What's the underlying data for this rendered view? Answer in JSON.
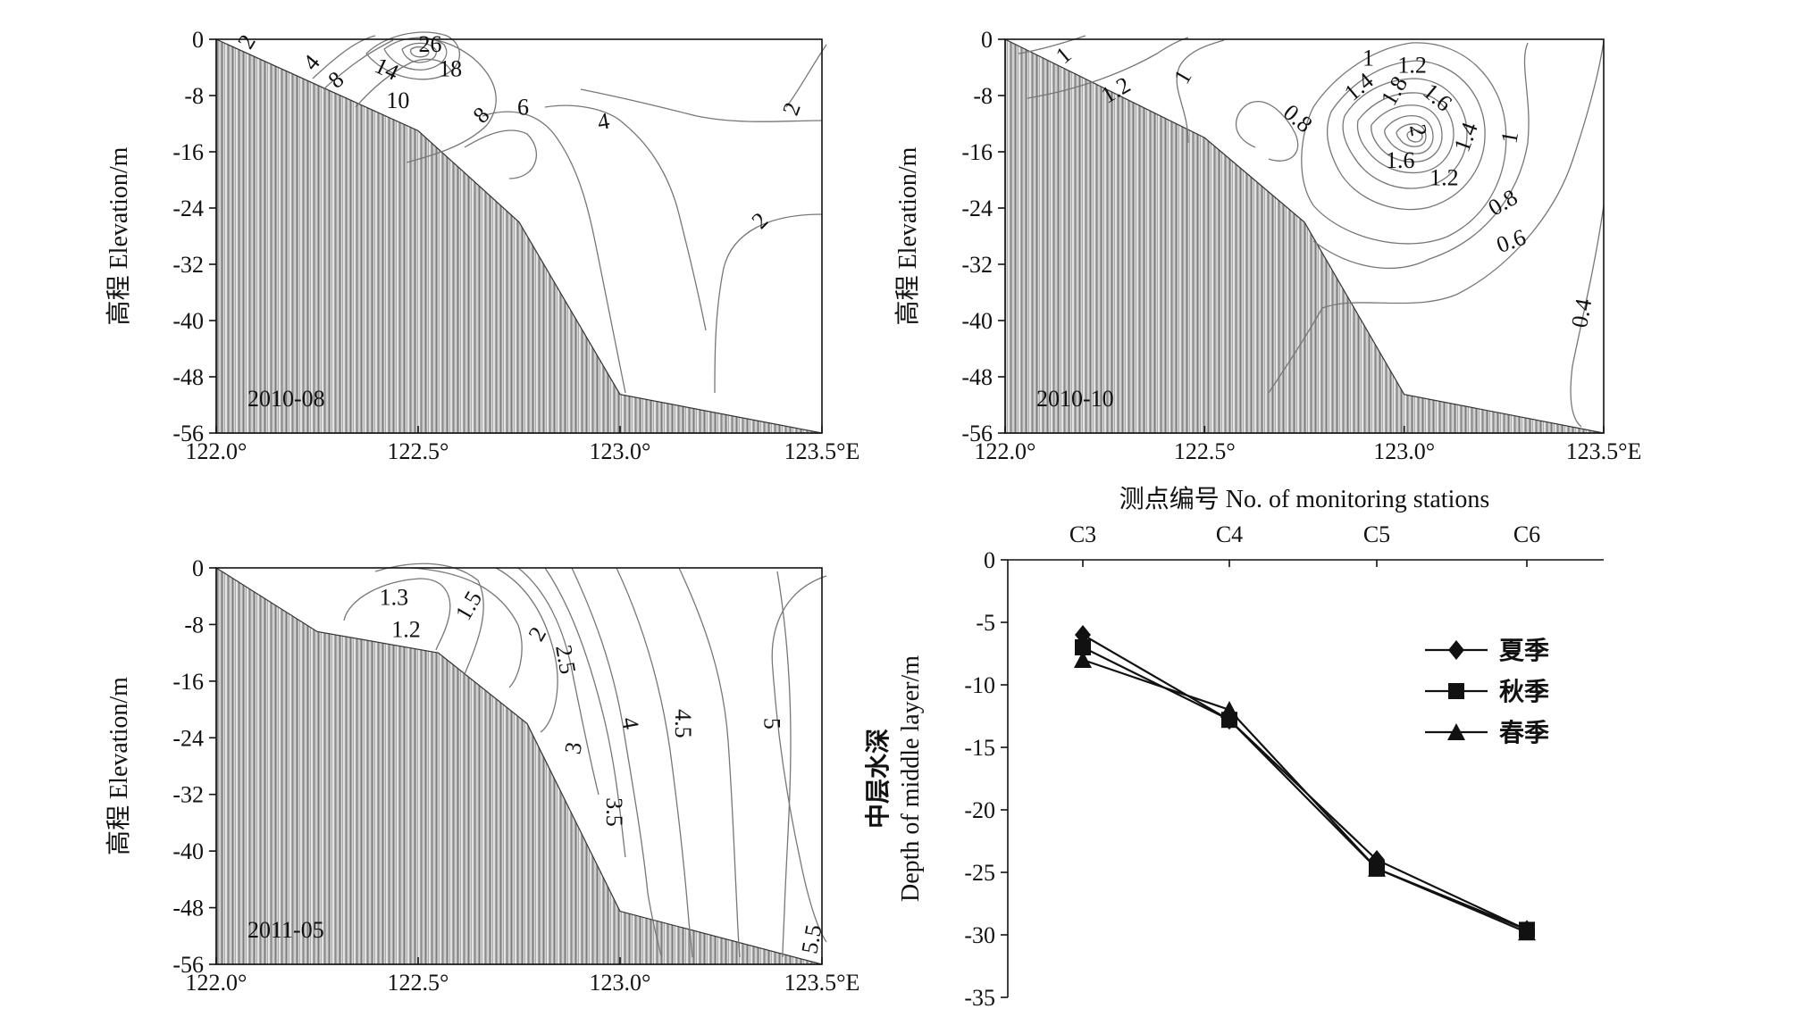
{
  "chart_data": [
    {
      "type": "contour",
      "panel_label": "2010-08",
      "ylabel": "高程 Elevation/m",
      "xlim": [
        122.0,
        123.5
      ],
      "ylim": [
        -56,
        0
      ],
      "x_ticks": [
        122.0,
        122.5,
        123.0,
        123.5
      ],
      "x_tick_labels": [
        "122.0°",
        "122.5°",
        "123.0°",
        "123.5°E"
      ],
      "y_ticks": [
        0,
        -8,
        -16,
        -24,
        -32,
        -40,
        -48,
        -56
      ],
      "y_tick_labels": [
        "0",
        "-8",
        "-16",
        "-24",
        "-32",
        "-40",
        "-48",
        "-56"
      ],
      "seabed": [
        [
          122.0,
          0
        ],
        [
          122.5,
          -13
        ],
        [
          122.75,
          -26
        ],
        [
          123.0,
          -50.5
        ],
        [
          123.5,
          -56
        ]
      ],
      "contour_labels": [
        {
          "text": "2",
          "x": 122.08,
          "y": -0.5,
          "rot": -60
        },
        {
          "text": "4",
          "x": 122.24,
          "y": -3.5,
          "rot": -50
        },
        {
          "text": "8",
          "x": 122.3,
          "y": -6,
          "rot": -40
        },
        {
          "text": "14",
          "x": 122.42,
          "y": -4.5,
          "rot": 25
        },
        {
          "text": "26",
          "x": 122.53,
          "y": -1,
          "rot": 0
        },
        {
          "text": "18",
          "x": 122.58,
          "y": -4.5,
          "rot": 0
        },
        {
          "text": "10",
          "x": 122.45,
          "y": -9,
          "rot": 0
        },
        {
          "text": "8",
          "x": 122.66,
          "y": -11,
          "rot": -45
        },
        {
          "text": "6",
          "x": 122.76,
          "y": -10,
          "rot": 0
        },
        {
          "text": "4",
          "x": 122.96,
          "y": -12,
          "rot": -10
        },
        {
          "text": "2",
          "x": 123.43,
          "y": -10,
          "rot": -70
        },
        {
          "text": "2",
          "x": 123.35,
          "y": -26,
          "rot": -45
        }
      ]
    },
    {
      "type": "contour",
      "panel_label": "2010-10",
      "ylabel": "高程 Elevation/m",
      "xlim": [
        122.0,
        123.5
      ],
      "ylim": [
        -56,
        0
      ],
      "x_ticks": [
        122.0,
        122.5,
        123.0,
        123.5
      ],
      "x_tick_labels": [
        "122.0°",
        "122.5°",
        "123.0°",
        "123.5°E"
      ],
      "y_ticks": [
        0,
        -8,
        -16,
        -24,
        -32,
        -40,
        -48,
        -56
      ],
      "y_tick_labels": [
        "0",
        "-8",
        "-16",
        "-24",
        "-32",
        "-40",
        "-48",
        "-56"
      ],
      "seabed": [
        [
          122.0,
          0
        ],
        [
          122.5,
          -14
        ],
        [
          122.75,
          -26
        ],
        [
          123.0,
          -50.5
        ],
        [
          123.5,
          -56
        ]
      ],
      "contour_labels": [
        {
          "text": "1",
          "x": 122.15,
          "y": -2.5,
          "rot": -40
        },
        {
          "text": "1.2",
          "x": 122.28,
          "y": -7.5,
          "rot": -30
        },
        {
          "text": "1",
          "x": 122.45,
          "y": -5.5,
          "rot": -60
        },
        {
          "text": "1",
          "x": 122.91,
          "y": -3,
          "rot": 0
        },
        {
          "text": "1.2",
          "x": 123.02,
          "y": -4,
          "rot": 0
        },
        {
          "text": "1.4",
          "x": 122.89,
          "y": -7,
          "rot": -40
        },
        {
          "text": "1.8",
          "x": 122.98,
          "y": -7.5,
          "rot": -60
        },
        {
          "text": "1.6",
          "x": 123.08,
          "y": -8.5,
          "rot": 40
        },
        {
          "text": "2",
          "x": 123.03,
          "y": -13,
          "rot": 80
        },
        {
          "text": "0.8",
          "x": 122.73,
          "y": -11.5,
          "rot": 40
        },
        {
          "text": "1.4",
          "x": 123.16,
          "y": -14,
          "rot": -70
        },
        {
          "text": "1",
          "x": 123.27,
          "y": -14,
          "rot": -80
        },
        {
          "text": "1.6",
          "x": 122.99,
          "y": -17.5,
          "rot": 0
        },
        {
          "text": "1.2",
          "x": 123.1,
          "y": -20,
          "rot": 0
        },
        {
          "text": "0.8",
          "x": 123.25,
          "y": -23.5,
          "rot": -30
        },
        {
          "text": "0.6",
          "x": 123.27,
          "y": -29,
          "rot": -20
        },
        {
          "text": "0.4",
          "x": 123.45,
          "y": -39,
          "rot": -80
        }
      ]
    },
    {
      "type": "contour",
      "panel_label": "2011-05",
      "ylabel": "高程 Elevation/m",
      "xlim": [
        122.0,
        123.5
      ],
      "ylim": [
        -56,
        0
      ],
      "x_ticks": [
        122.0,
        122.5,
        123.0,
        123.5
      ],
      "x_tick_labels": [
        "122.0°",
        "122.5°",
        "123.0°",
        "123.5°E"
      ],
      "y_ticks": [
        0,
        -8,
        -16,
        -24,
        -32,
        -40,
        -48,
        -56
      ],
      "y_tick_labels": [
        "0",
        "-8",
        "-16",
        "-24",
        "-32",
        "-40",
        "-48",
        "-56"
      ],
      "seabed": [
        [
          122.0,
          0
        ],
        [
          122.25,
          -9
        ],
        [
          122.55,
          -12
        ],
        [
          122.77,
          -22
        ],
        [
          123.0,
          -48.5
        ],
        [
          123.5,
          -56
        ]
      ],
      "contour_labels": [
        {
          "text": "1.3",
          "x": 122.44,
          "y": -4.5,
          "rot": 0
        },
        {
          "text": "1.2",
          "x": 122.47,
          "y": -9,
          "rot": 0
        },
        {
          "text": "1.5",
          "x": 122.63,
          "y": -5.5,
          "rot": -60
        },
        {
          "text": "2",
          "x": 122.8,
          "y": -9.5,
          "rot": -60
        },
        {
          "text": "2.5",
          "x": 122.86,
          "y": -13,
          "rot": 80
        },
        {
          "text": "3",
          "x": 122.89,
          "y": -25.5,
          "rot": -80
        },
        {
          "text": "3.5",
          "x": 122.98,
          "y": -34.5,
          "rot": 90
        },
        {
          "text": "4",
          "x": 123.02,
          "y": -22,
          "rot": 80
        },
        {
          "text": "4.5",
          "x": 123.15,
          "y": -22,
          "rot": 90
        },
        {
          "text": "5",
          "x": 123.37,
          "y": -22,
          "rot": 90
        },
        {
          "text": "5.5",
          "x": 123.48,
          "y": -52.5,
          "rot": -80
        }
      ]
    },
    {
      "type": "line",
      "title": "测点编号 No. of monitoring stations",
      "ylabel_cn": "中层水深",
      "ylabel_en": "Depth of middle layer/m",
      "categories": [
        "C3",
        "C4",
        "C5",
        "C6"
      ],
      "ylim": [
        -35,
        0
      ],
      "y_ticks": [
        0,
        -5,
        -10,
        -15,
        -20,
        -25,
        -30,
        -35
      ],
      "y_tick_labels": [
        "0",
        "-5",
        "-10",
        "-15",
        "-20",
        "-25",
        "-30",
        "-35"
      ],
      "legend_position": "top-right",
      "grid": false,
      "series": [
        {
          "name": "夏季",
          "marker": "diamond",
          "values": [
            -6,
            -12.8,
            -24,
            -29.6
          ]
        },
        {
          "name": "秋季",
          "marker": "square",
          "values": [
            -7,
            -12.8,
            -24.7,
            -29.6
          ]
        },
        {
          "name": "春季",
          "marker": "triangle",
          "values": [
            -8,
            -12,
            -24.7,
            -29.8
          ]
        }
      ]
    }
  ]
}
